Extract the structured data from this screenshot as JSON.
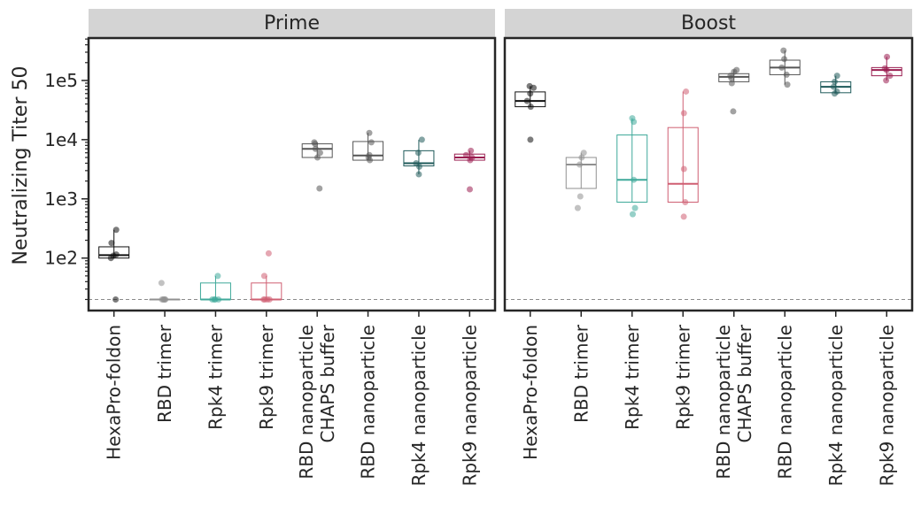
{
  "chart_data": {
    "type": "box",
    "y_label": "Neutralizing Titer 50",
    "y_scale": "log",
    "y_range": [
      13,
      520000
    ],
    "y_ticks": [
      {
        "value": 100,
        "label": "1e2"
      },
      {
        "value": 1000,
        "label": "1e3"
      },
      {
        "value": 10000,
        "label": "1e4"
      },
      {
        "value": 100000,
        "label": "1e5"
      }
    ],
    "limit_of_detection": 20,
    "categories": [
      {
        "lines": [
          "HexaPro-foldon"
        ]
      },
      {
        "lines": [
          "RBD trimer"
        ]
      },
      {
        "lines": [
          "Rpk4 trimer"
        ]
      },
      {
        "lines": [
          "Rpk9 trimer"
        ]
      },
      {
        "lines": [
          "RBD nanoparticle",
          "CHAPS buffer"
        ]
      },
      {
        "lines": [
          "RBD nanoparticle"
        ]
      },
      {
        "lines": [
          "Rpk4 nanoparticle"
        ]
      },
      {
        "lines": [
          "Rpk9 nanoparticle"
        ]
      }
    ],
    "colors": [
      "#111111",
      "#909090",
      "#3fa99a",
      "#cf5f72",
      "#565656",
      "#565656",
      "#1f5a5a",
      "#9a1e50"
    ],
    "panels": [
      {
        "title": "Prime",
        "groups": [
          {
            "q1": 100,
            "median": 112,
            "q3": 155,
            "whisker_low": 100,
            "whisker_high": 300,
            "points": [
              20,
              100,
              110,
              115,
              180,
              300
            ]
          },
          {
            "q1": 20,
            "median": 20,
            "q3": 20,
            "whisker_low": 20,
            "whisker_high": 20,
            "points": [
              20,
              20,
              20,
              20,
              20,
              38
            ]
          },
          {
            "q1": 20,
            "median": 20,
            "q3": 38,
            "whisker_low": 20,
            "whisker_high": 50,
            "points": [
              20,
              20,
              20,
              20,
              50
            ]
          },
          {
            "q1": 20,
            "median": 20,
            "q3": 38,
            "whisker_low": 20,
            "whisker_high": 50,
            "points": [
              20,
              20,
              20,
              20,
              50,
              120
            ]
          },
          {
            "q1": 5000,
            "median": 7000,
            "q3": 8500,
            "whisker_low": 5000,
            "whisker_high": 9000,
            "points": [
              1500,
              5000,
              6000,
              7000,
              8500,
              9000
            ]
          },
          {
            "q1": 4500,
            "median": 5400,
            "q3": 9300,
            "whisker_low": 4500,
            "whisker_high": 13000,
            "points": [
              4500,
              5000,
              5500,
              9000,
              13000
            ]
          },
          {
            "q1": 3600,
            "median": 4000,
            "q3": 6500,
            "whisker_low": 2600,
            "whisker_high": 10000,
            "points": [
              2600,
              3500,
              4000,
              6000,
              10000
            ]
          },
          {
            "q1": 4500,
            "median": 5000,
            "q3": 5700,
            "whisker_low": 4500,
            "whisker_high": 6500,
            "points": [
              1450,
              4500,
              5000,
              5500,
              6500
            ]
          }
        ]
      },
      {
        "title": "Boost",
        "groups": [
          {
            "q1": 36000,
            "median": 45000,
            "q3": 64000,
            "whisker_low": 36000,
            "whisker_high": 80000,
            "points": [
              10000,
              36000,
              45000,
              60000,
              75000,
              80000
            ]
          },
          {
            "q1": 1500,
            "median": 3800,
            "q3": 5000,
            "whisker_low": 1500,
            "whisker_high": 6000,
            "points": [
              700,
              1100,
              3800,
              5000,
              6000
            ]
          },
          {
            "q1": 880,
            "median": 2100,
            "q3": 12000,
            "whisker_low": 880,
            "whisker_high": 23000,
            "points": [
              550,
              700,
              2100,
              20000,
              23000
            ]
          },
          {
            "q1": 880,
            "median": 1800,
            "q3": 16000,
            "whisker_low": 880,
            "whisker_high": 65000,
            "points": [
              500,
              880,
              3200,
              28000,
              65000
            ]
          },
          {
            "q1": 95000,
            "median": 115000,
            "q3": 130000,
            "whisker_low": 95000,
            "whisker_high": 150000,
            "points": [
              30000,
              90000,
              110000,
              120000,
              140000,
              150000
            ]
          },
          {
            "q1": 125000,
            "median": 165000,
            "q3": 220000,
            "whisker_low": 85000,
            "whisker_high": 320000,
            "points": [
              85000,
              125000,
              165000,
              230000,
              320000
            ]
          },
          {
            "q1": 62000,
            "median": 78000,
            "q3": 95000,
            "whisker_low": 62000,
            "whisker_high": 120000,
            "points": [
              60000,
              65000,
              78000,
              95000,
              120000
            ]
          },
          {
            "q1": 120000,
            "median": 150000,
            "q3": 165000,
            "whisker_low": 100000,
            "whisker_high": 250000,
            "points": [
              100000,
              120000,
              150000,
              160000,
              250000
            ]
          }
        ]
      }
    ]
  }
}
